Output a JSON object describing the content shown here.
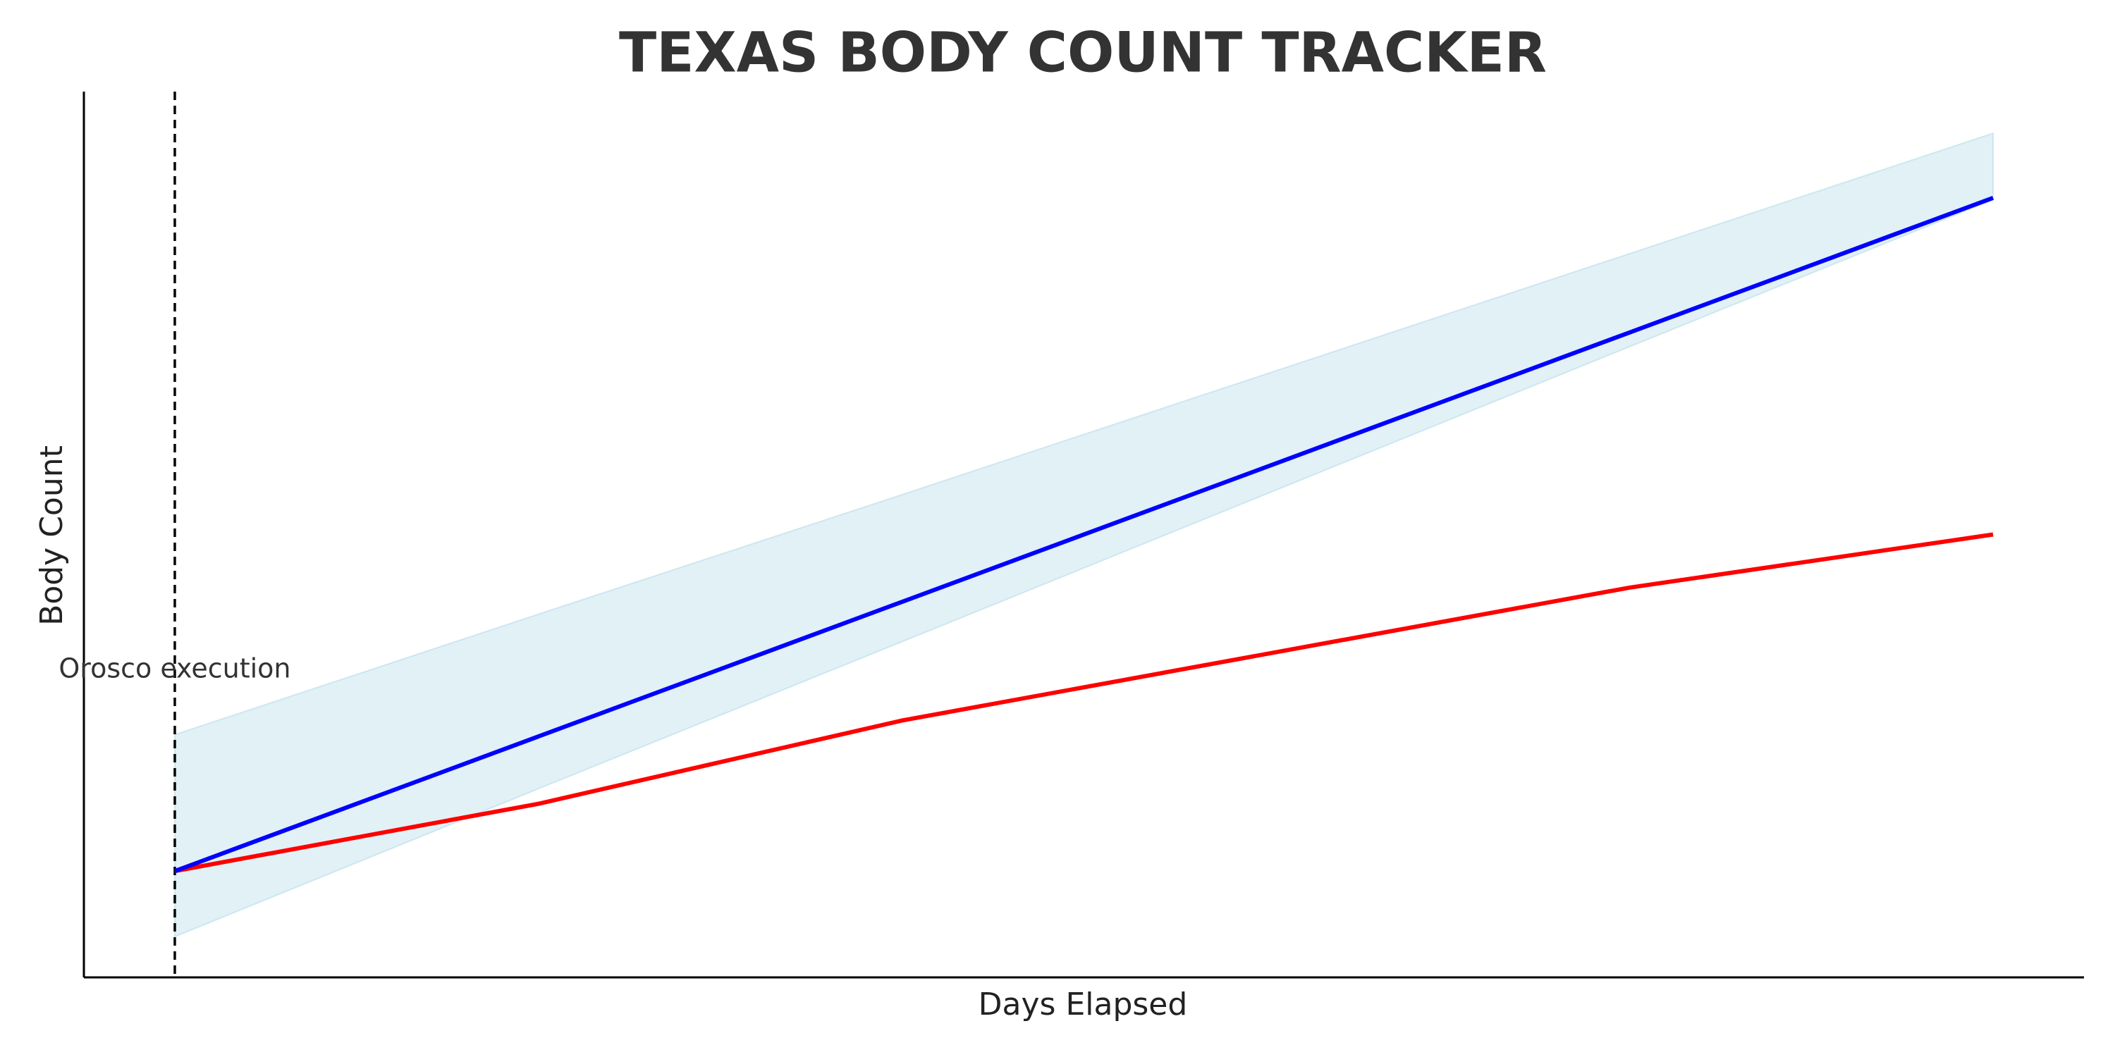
{
  "chart_data": {
    "type": "line",
    "title": "TEXAS BODY COUNT TRACKER",
    "x_label": "Days Elapsed",
    "y_label": "Body Count",
    "x": [
      0,
      20,
      40,
      80,
      100
    ],
    "series": [
      {
        "color": "#ff0000",
        "values": [
          12,
          19.6,
          29,
          44,
          50
        ]
      },
      {
        "color": "#0000ff",
        "values": [
          12,
          27.2,
          42.4,
          72.8,
          88
        ]
      }
    ],
    "band": {
      "color": "#add8e6",
      "lower": [
        4.6,
        21.3,
        37.9,
        71.2,
        87.8
      ],
      "upper": [
        27.4,
        41,
        54.5,
        81.7,
        95.3
      ]
    },
    "annotation": {
      "text": "Orosco execution",
      "x": 0
    },
    "xlim": [
      -5,
      105
    ],
    "ylim": [
      0,
      100
    ],
    "grid": false
  }
}
